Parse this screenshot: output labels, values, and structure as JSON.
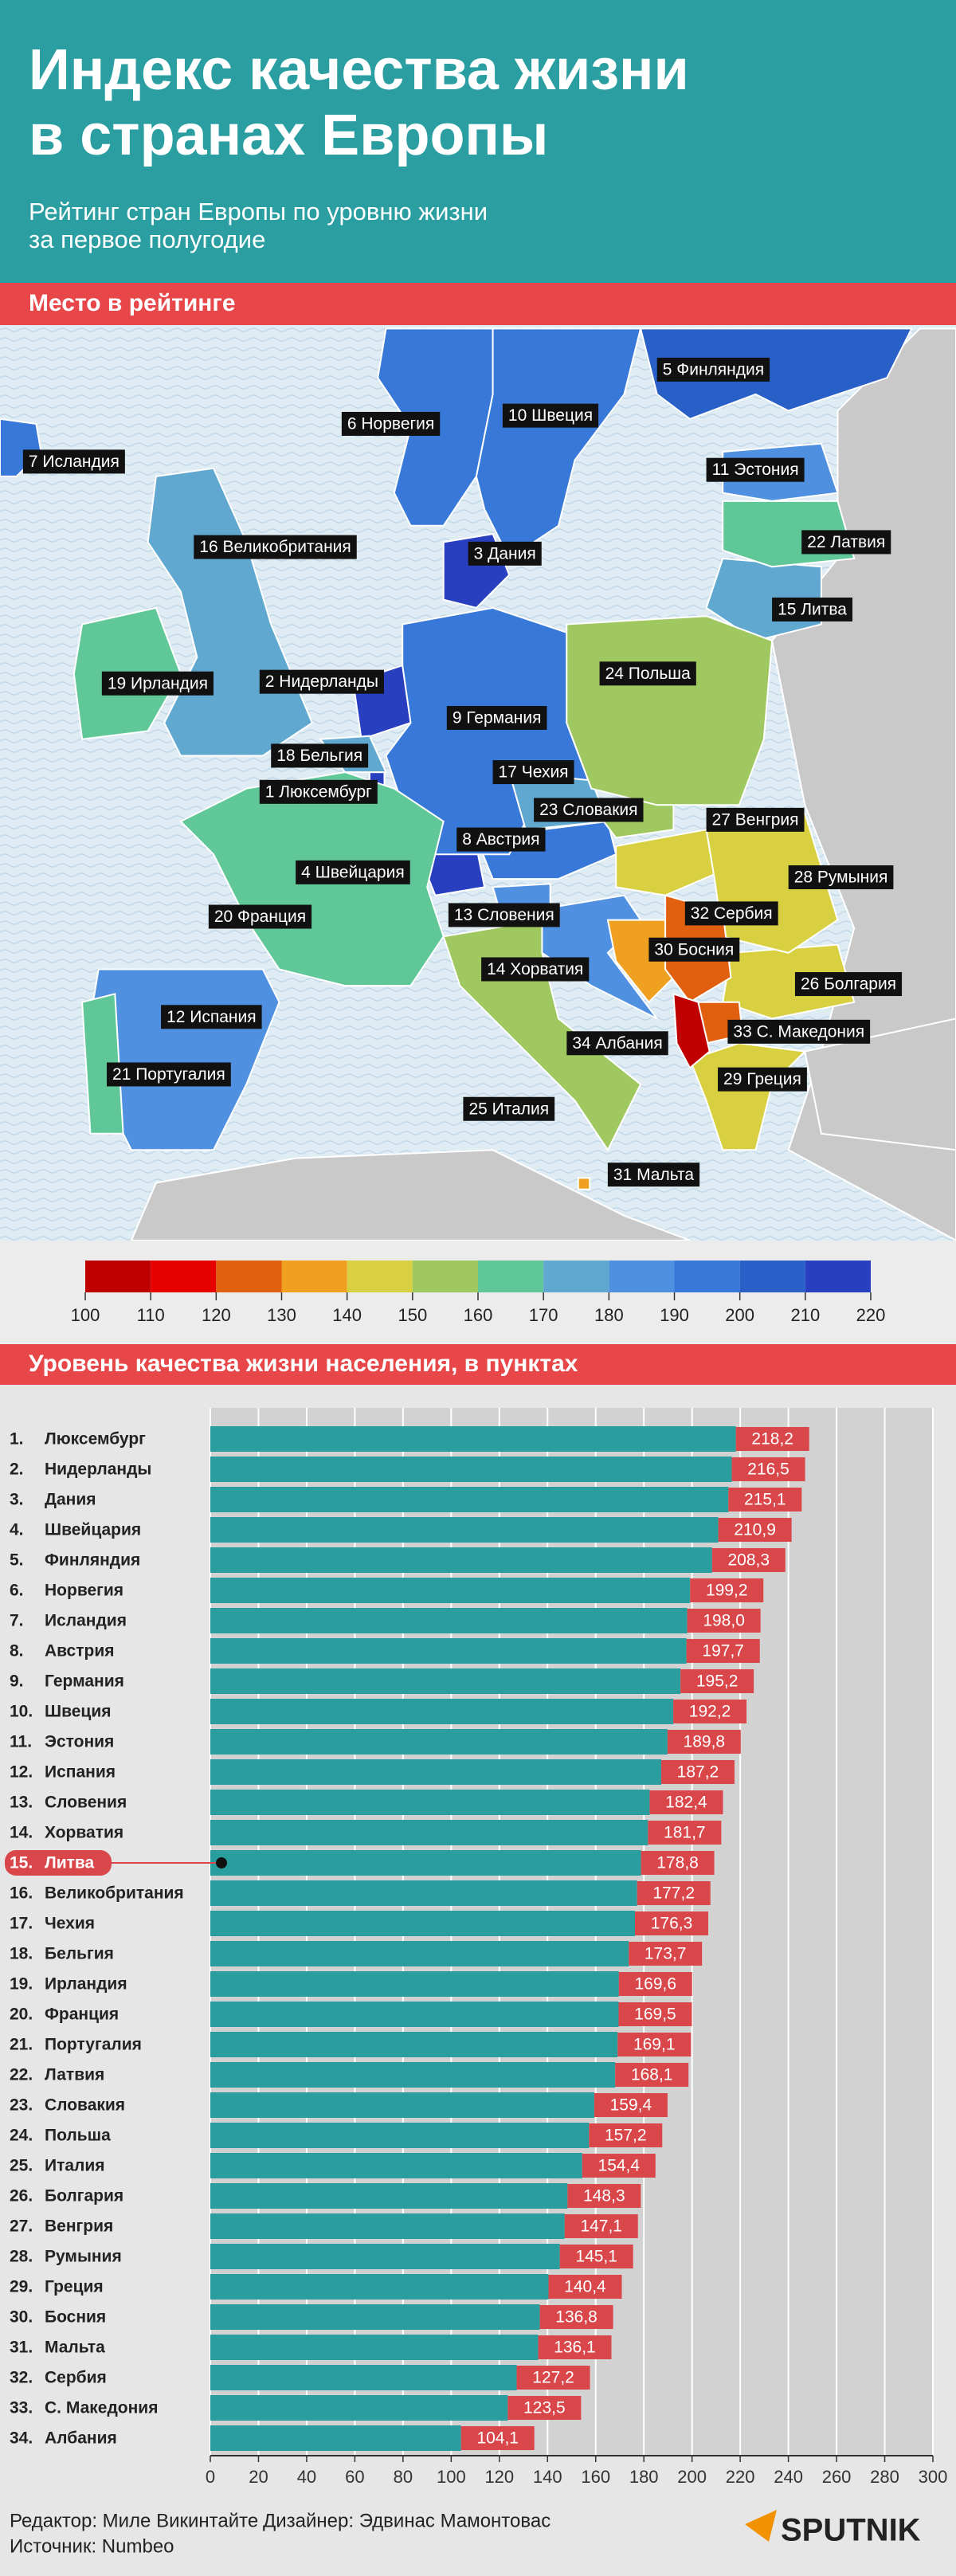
{
  "header": {
    "title_lines": [
      "Индекс качества жизни",
      "в странах Европы"
    ],
    "subtitle_lines": [
      "Рейтинг стран Европы по уровню жизни",
      "за первое полугодие"
    ]
  },
  "sections": {
    "map": "Место в рейтинге",
    "chart": "Уровень качества жизни населения, в пунктах"
  },
  "map": {
    "labels": [
      "1 Люксембург",
      "2 Нидерланды",
      "3 Дания",
      "4 Швейцария",
      "5 Финляндия",
      "6 Норвегия",
      "7 Исландия",
      "8 Австрия",
      "9 Германия",
      "10 Швеция",
      "11 Эстония",
      "12 Испания",
      "13 Словения",
      "14 Хорватия",
      "15 Литва",
      "16 Великобритания",
      "17 Чехия",
      "18 Бельгия",
      "19 Ирландия",
      "20 Франция",
      "21 Португалия",
      "22 Латвия",
      "23 Словакия",
      "24 Польша",
      "25 Италия",
      "26 Болгария",
      "27 Венгрия",
      "28 Румыния",
      "29 Греция",
      "30 Босния",
      "31 Мальта",
      "32 Сербия",
      "33 С. Македония",
      "34 Албания"
    ]
  },
  "color_scale": {
    "ticks": [
      100,
      110,
      120,
      130,
      140,
      150,
      160,
      170,
      180,
      190,
      200,
      210,
      220
    ],
    "colors": [
      "#c00000",
      "#e60000",
      "#e06010",
      "#f0a020",
      "#d8d040",
      "#a0c860",
      "#60c898",
      "#60a8d0",
      "#5090e0",
      "#3878d8",
      "#2860c8",
      "#2840c0"
    ]
  },
  "chart_data": {
    "type": "bar",
    "orientation": "horizontal",
    "ranks": [
      "1.",
      "2.",
      "3.",
      "4.",
      "5.",
      "6.",
      "7.",
      "8.",
      "9.",
      "10.",
      "11.",
      "12.",
      "13.",
      "14.",
      "15.",
      "16.",
      "17.",
      "18.",
      "19.",
      "20.",
      "21.",
      "22.",
      "23.",
      "24.",
      "25.",
      "26.",
      "27.",
      "28.",
      "29.",
      "30.",
      "31.",
      "32.",
      "33.",
      "34."
    ],
    "categories": [
      "Люксембург",
      "Нидерланды",
      "Дания",
      "Швейцария",
      "Финляндия",
      "Норвегия",
      "Исландия",
      "Австрия",
      "Германия",
      "Швеция",
      "Эстония",
      "Испания",
      "Словения",
      "Хорватия",
      "Литва",
      "Великобритания",
      "Чехия",
      "Бельгия",
      "Ирландия",
      "Франция",
      "Португалия",
      "Латвия",
      "Словакия",
      "Польша",
      "Италия",
      "Болгария",
      "Венгрия",
      "Румыния",
      "Греция",
      "Босния",
      "Мальта",
      "Сербия",
      "С. Македония",
      "Албания"
    ],
    "values": [
      218.2,
      216.5,
      215.1,
      210.9,
      208.3,
      199.2,
      198.0,
      197.7,
      195.2,
      192.2,
      189.8,
      187.2,
      182.4,
      181.7,
      178.8,
      177.2,
      176.3,
      173.7,
      169.6,
      169.5,
      169.1,
      168.1,
      159.4,
      157.2,
      154.4,
      148.3,
      147.1,
      145.1,
      140.4,
      136.8,
      136.1,
      127.2,
      123.5,
      104.1
    ],
    "value_labels": [
      "218,2",
      "216,5",
      "215,1",
      "210,9",
      "208,3",
      "199,2",
      "198,0",
      "197,7",
      "195,2",
      "192,2",
      "189,8",
      "187,2",
      "182,4",
      "181,7",
      "178,8",
      "177,2",
      "176,3",
      "173,7",
      "169,6",
      "169,5",
      "169,1",
      "168,1",
      "159,4",
      "157,2",
      "154,4",
      "148,3",
      "147,1",
      "145,1",
      "140,4",
      "136,8",
      "136,1",
      "127,2",
      "123,5",
      "104,1"
    ],
    "color": "#2a9d9f",
    "label_color": "#d9474a",
    "highlight": 14,
    "xlim": [
      0,
      300
    ],
    "xticks": [
      0,
      20,
      40,
      60,
      80,
      100,
      120,
      140,
      160,
      180,
      200,
      220,
      240,
      260,
      280,
      300
    ],
    "grid": true
  },
  "footer": {
    "editor": "Редактор: Миле Викинтайте",
    "designer": "Дизайнер: Эдвинас Мамонтовас",
    "source": "Источник: Numbeo",
    "logo": "SPUTNIK"
  }
}
